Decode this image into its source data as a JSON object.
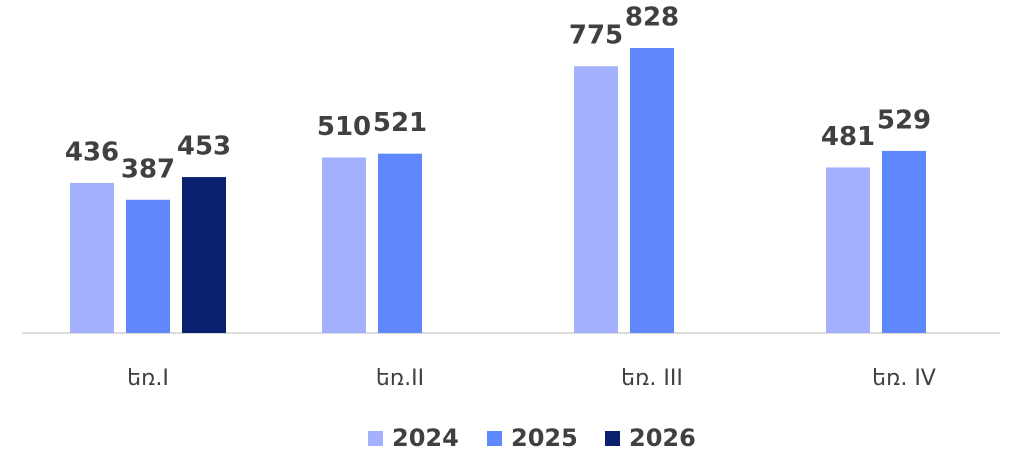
{
  "chart_data": {
    "type": "bar",
    "categories": [
      "եռ.I",
      "եռ.II",
      "եռ. III",
      "եռ. IV"
    ],
    "series": [
      {
        "name": "2024",
        "color": "#a3b1fe",
        "values": [
          436,
          510,
          775,
          481
        ]
      },
      {
        "name": "2025",
        "color": "#5f88fe",
        "values": [
          387,
          521,
          828,
          529
        ]
      },
      {
        "name": "2026",
        "color": "#0a1f6e",
        "values": [
          453,
          null,
          null,
          null
        ]
      }
    ],
    "legend": "bottom"
  }
}
